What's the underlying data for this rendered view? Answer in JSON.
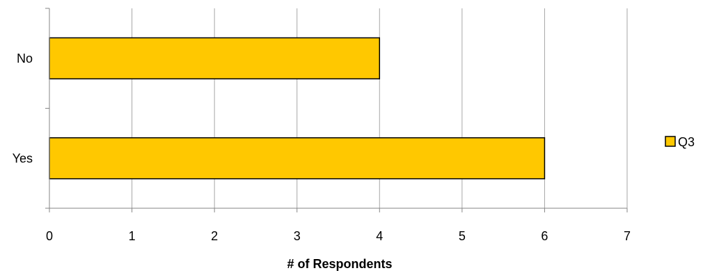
{
  "chart_data": {
    "type": "bar",
    "orientation": "horizontal",
    "categories": [
      "Yes",
      "No"
    ],
    "series": [
      {
        "name": "Q3",
        "values": [
          6,
          4
        ]
      }
    ],
    "xlabel": "# of Respondents",
    "ylabel": "",
    "xlim": [
      0,
      7
    ],
    "xticks": [
      "0",
      "1",
      "2",
      "3",
      "4",
      "5",
      "6",
      "7"
    ],
    "grid": "vertical",
    "legend": "right",
    "bar_color": "#FFC800",
    "bar_outline": "#000000",
    "grid_color": "#A6A6A6"
  }
}
